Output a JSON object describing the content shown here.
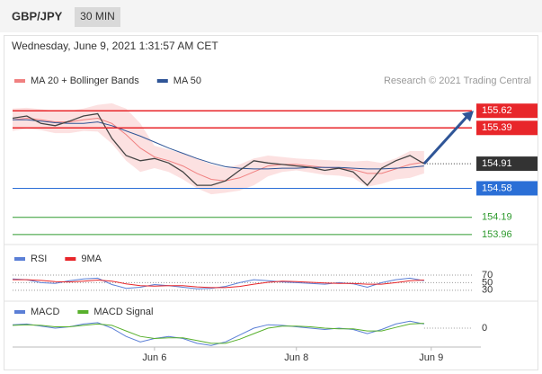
{
  "header": {
    "symbol": "GBP/JPY",
    "timeframe": "30 MIN",
    "datetime": "Wednesday, June 9, 2021 1:31:57 AM CET"
  },
  "chart_data": [
    {
      "type": "price",
      "credit": "Research © 2021 Trading Central",
      "x": [
        0,
        2,
        4,
        6,
        8,
        10,
        12,
        14,
        16,
        18,
        20,
        22,
        24,
        26,
        28,
        30,
        32,
        34,
        36,
        38,
        40,
        42,
        44,
        46,
        48,
        50,
        52,
        54,
        56,
        58
      ],
      "values": [
        155.52,
        155.55,
        155.45,
        155.42,
        155.48,
        155.55,
        155.58,
        155.25,
        155.02,
        154.95,
        154.98,
        154.92,
        154.8,
        154.62,
        154.62,
        154.68,
        154.82,
        154.95,
        154.92,
        154.9,
        154.88,
        154.86,
        154.82,
        154.85,
        154.8,
        154.62,
        154.85,
        154.95,
        155.02,
        154.91
      ],
      "color": "#444444",
      "series": [
        {
          "name": "MA 20 + Bollinger Bands",
          "color": "#f08080",
          "band_color": "#fbd9d9",
          "values": [
            155.5,
            155.52,
            155.5,
            155.47,
            155.47,
            155.5,
            155.52,
            155.45,
            155.3,
            155.12,
            155.0,
            154.95,
            154.88,
            154.78,
            154.7,
            154.68,
            154.72,
            154.8,
            154.88,
            154.9,
            154.9,
            154.88,
            154.86,
            154.85,
            154.83,
            154.78,
            154.78,
            154.84,
            154.9,
            154.93
          ],
          "upper": [
            155.65,
            155.66,
            155.64,
            155.62,
            155.62,
            155.65,
            155.7,
            155.72,
            155.65,
            155.45,
            155.15,
            155.1,
            155.05,
            154.98,
            154.9,
            154.85,
            154.9,
            154.98,
            155.02,
            155.0,
            154.98,
            154.97,
            154.96,
            154.95,
            154.94,
            154.95,
            154.92,
            154.98,
            155.08,
            155.08
          ],
          "lower": [
            155.35,
            155.38,
            155.36,
            155.32,
            155.32,
            155.35,
            155.34,
            155.18,
            154.95,
            154.8,
            154.85,
            154.8,
            154.7,
            154.58,
            154.5,
            154.52,
            154.55,
            154.62,
            154.74,
            154.8,
            154.82,
            154.79,
            154.76,
            154.75,
            154.72,
            154.6,
            154.64,
            154.7,
            154.72,
            154.78
          ]
        },
        {
          "name": "MA 50",
          "color": "#2f5597",
          "values": [
            155.5,
            155.5,
            155.48,
            155.46,
            155.45,
            155.45,
            155.47,
            155.42,
            155.35,
            155.28,
            155.2,
            155.12,
            155.05,
            154.98,
            154.92,
            154.87,
            154.85,
            154.84,
            154.84,
            154.85,
            154.85,
            154.86,
            154.86,
            154.86,
            154.85,
            154.84,
            154.84,
            154.85,
            154.86,
            154.88
          ]
        }
      ],
      "levels": [
        {
          "value": 155.62,
          "color": "#e8262a",
          "style": "box",
          "line": "solid"
        },
        {
          "value": 155.39,
          "color": "#e8262a",
          "style": "box",
          "line": "solid"
        },
        {
          "value": 154.91,
          "color": "#333333",
          "style": "box",
          "line": "dotted"
        },
        {
          "value": 154.58,
          "color": "#2b6fd6",
          "style": "box",
          "line": "solid"
        },
        {
          "value": 154.19,
          "color": "#2e9a2e",
          "style": "text",
          "line": "solid"
        },
        {
          "value": 153.96,
          "color": "#2e9a2e",
          "style": "text",
          "line": "solid"
        }
      ],
      "xlim": [
        0,
        66
      ],
      "ylim": [
        153.85,
        155.96
      ]
    },
    {
      "type": "oscillator",
      "x": [
        0,
        2,
        4,
        6,
        8,
        10,
        12,
        14,
        16,
        18,
        20,
        22,
        24,
        26,
        28,
        30,
        32,
        34,
        36,
        38,
        40,
        42,
        44,
        46,
        48,
        50,
        52,
        54,
        56,
        58
      ],
      "series": [
        {
          "name": "RSI",
          "color": "#5b7fd6",
          "values": [
            60,
            58,
            50,
            48,
            55,
            60,
            62,
            45,
            35,
            38,
            45,
            42,
            38,
            34,
            35,
            40,
            50,
            58,
            55,
            52,
            50,
            48,
            46,
            50,
            47,
            38,
            50,
            58,
            62,
            55
          ]
        },
        {
          "name": "9MA",
          "color": "#e8262a",
          "values": [
            58,
            58,
            56,
            53,
            52,
            54,
            57,
            54,
            47,
            42,
            41,
            42,
            42,
            39,
            37,
            37,
            40,
            46,
            51,
            54,
            53,
            51,
            49,
            48,
            48,
            46,
            46,
            50,
            55,
            57
          ]
        }
      ],
      "xlim": [
        0,
        66
      ],
      "ylim": [
        13,
        89
      ],
      "yticks": [
        70,
        50,
        30
      ],
      "grid": true
    },
    {
      "type": "oscillator",
      "x": [
        0,
        2,
        4,
        6,
        8,
        10,
        12,
        14,
        16,
        18,
        20,
        22,
        24,
        26,
        28,
        30,
        32,
        34,
        36,
        38,
        40,
        42,
        44,
        46,
        48,
        50,
        52,
        54,
        56,
        58
      ],
      "series": [
        {
          "name": "MACD",
          "color": "#5b7fd6",
          "values": [
            0.05,
            0.06,
            0.03,
            0.0,
            0.02,
            0.06,
            0.08,
            0.0,
            -0.12,
            -0.2,
            -0.15,
            -0.12,
            -0.15,
            -0.22,
            -0.25,
            -0.2,
            -0.1,
            0.0,
            0.05,
            0.04,
            0.02,
            0.0,
            -0.02,
            0.0,
            -0.02,
            -0.08,
            -0.02,
            0.06,
            0.1,
            0.06
          ]
        },
        {
          "name": "MACD Signal",
          "color": "#58b02c",
          "values": [
            0.04,
            0.05,
            0.04,
            0.02,
            0.02,
            0.04,
            0.06,
            0.04,
            -0.04,
            -0.12,
            -0.15,
            -0.14,
            -0.14,
            -0.18,
            -0.22,
            -0.22,
            -0.16,
            -0.08,
            0.0,
            0.03,
            0.03,
            0.02,
            0.0,
            -0.01,
            -0.01,
            -0.04,
            -0.04,
            0.01,
            0.06,
            0.07
          ]
        }
      ],
      "xlim": [
        0,
        66
      ],
      "ylim": [
        -0.3,
        0.3
      ],
      "yticks": [
        0
      ],
      "grid": true,
      "xticks": [
        {
          "value": 20,
          "label": "Jun 6"
        },
        {
          "value": 40,
          "label": "Jun 8"
        },
        {
          "value": 59,
          "label": "Jun 9"
        }
      ]
    }
  ]
}
